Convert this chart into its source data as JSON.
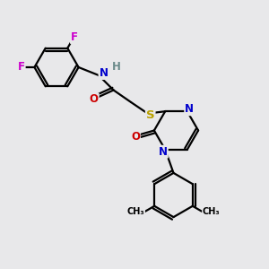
{
  "background_color": "#e8e8ea",
  "line_color": "#000000",
  "line_width": 1.6,
  "fig_size": [
    3.0,
    3.0
  ],
  "dpi": 100,
  "colors": {
    "F": "#cc00cc",
    "N": "#0000cc",
    "O": "#cc0000",
    "S": "#b8a000",
    "H": "#6a8a8a",
    "C": "#000000"
  }
}
